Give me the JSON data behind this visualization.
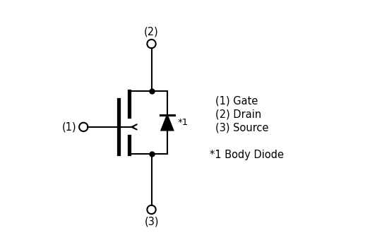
{
  "background_color": "#ffffff",
  "line_color": "#000000",
  "line_width": 1.5,
  "gate_label": "(1) Gate",
  "drain_label": "(2) Drain",
  "source_label": "(3) Source",
  "body_diode_label": "*1 Body Diode",
  "pin1_label": "(1)",
  "pin2_label": "(2)",
  "pin3_label": "(3)",
  "star1_label": "*1",
  "font_size": 10.5
}
